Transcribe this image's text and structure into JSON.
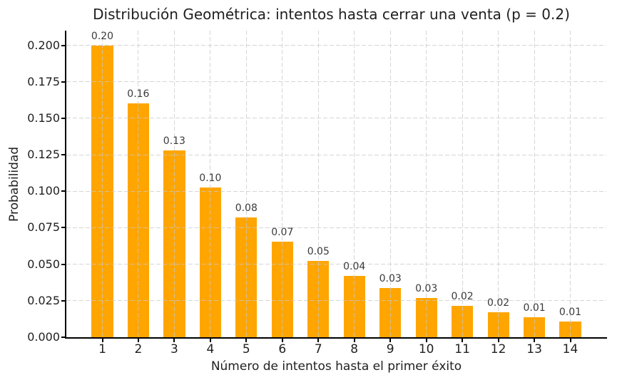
{
  "chart_data": {
    "type": "bar",
    "title": "Distribución Geométrica: intentos hasta cerrar una venta (p = 0.2)",
    "xlabel": "Número de intentos hasta el primer éxito",
    "ylabel": "Probabilidad",
    "categories": [
      "1",
      "2",
      "3",
      "4",
      "5",
      "6",
      "7",
      "8",
      "9",
      "10",
      "11",
      "12",
      "13",
      "14"
    ],
    "values": [
      0.2,
      0.16,
      0.128,
      0.1024,
      0.08192,
      0.065536,
      0.0524288,
      0.041943,
      0.0335544,
      0.0268435,
      0.0214748,
      0.0171799,
      0.0137439,
      0.0109951
    ],
    "bar_labels": [
      "0.20",
      "0.16",
      "0.13",
      "0.10",
      "0.08",
      "0.07",
      "0.05",
      "0.04",
      "0.03",
      "0.03",
      "0.02",
      "0.02",
      "0.01",
      "0.01"
    ],
    "ytick_values": [
      0,
      0.025,
      0.05,
      0.075,
      0.1,
      0.125,
      0.15,
      0.175,
      0.2
    ],
    "ytick_labels": [
      "0.000",
      "0.025",
      "0.050",
      "0.075",
      "0.100",
      "0.125",
      "0.150",
      "0.175",
      "0.200"
    ],
    "xlim": [
      0,
      15
    ],
    "ylim": [
      0,
      0.21
    ],
    "bar_width_fraction": 0.6,
    "grid": true,
    "grid_style": "dashed",
    "legend_position": "none",
    "colors": {
      "bar": "#FFA500",
      "grid": "#C8C8C8",
      "text": "#1F1F1F",
      "bar_label": "#3A3A3A",
      "spine": "#000000",
      "background": "#FFFFFF"
    }
  }
}
